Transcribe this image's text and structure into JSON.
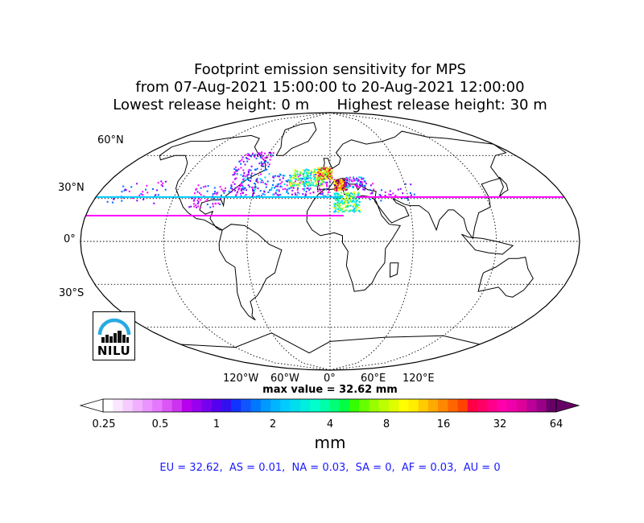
{
  "title": {
    "line1": "Footprint emission sensitivity for MPS",
    "line2": "from 07-Aug-2021 15:00:00 to 20-Aug-2021 12:00:00",
    "line3": "Lowest release height: 0 m      Highest release height: 30 m"
  },
  "map": {
    "projection": "robinson",
    "lat_labels": [
      "60°N",
      "30°N",
      "0°",
      "30°S"
    ],
    "lon_labels": [
      "120°W",
      "60°W",
      "0°",
      "60°E",
      "120°E"
    ],
    "lat_lines_deg": [
      60,
      30,
      0,
      -30,
      -60
    ],
    "lon_lines_deg": [
      -120,
      -60,
      0,
      60,
      120
    ],
    "plume_colors": [
      "#ff00ff",
      "#8800ff",
      "#0066ff",
      "#00ccff",
      "#00ffcc",
      "#66ff33",
      "#ffff00",
      "#ff9900",
      "#ff0066",
      "#660066"
    ]
  },
  "max_value": "max value = 32.62 mm",
  "colorbar": {
    "tick_labels": [
      "0.25",
      "0.5",
      "1",
      "2",
      "4",
      "8",
      "16",
      "32",
      "64"
    ],
    "unit": "mm",
    "colors": [
      "#ffffff",
      "#fbe6ff",
      "#f6ccff",
      "#f0b0ff",
      "#ea94ff",
      "#e478ff",
      "#dc55f5",
      "#cc33ee",
      "#b800ee",
      "#9900ee",
      "#7700ee",
      "#5500ee",
      "#3311ee",
      "#1133ff",
      "#1155ff",
      "#0077ff",
      "#0099ff",
      "#00b4ff",
      "#00ccff",
      "#00ddee",
      "#00eedd",
      "#00ffcc",
      "#00ffaa",
      "#00ff77",
      "#00ff44",
      "#33ff00",
      "#66ff00",
      "#99ff00",
      "#bbff00",
      "#ddff00",
      "#ffff00",
      "#ffee00",
      "#ffcc00",
      "#ffaa00",
      "#ff8800",
      "#ff6600",
      "#ff4400",
      "#ff0044",
      "#ff0066",
      "#ff0088",
      "#ff00aa",
      "#ee00aa",
      "#dd0099",
      "#bb0099",
      "#990088",
      "#660066"
    ]
  },
  "regions_text": "EU = 32.62,  AS = 0.01,  NA = 0.03,  SA = 0,  AF = 0.03,  AU = 0",
  "logo": {
    "text": "NILU",
    "ring_color": "#29aae1"
  }
}
